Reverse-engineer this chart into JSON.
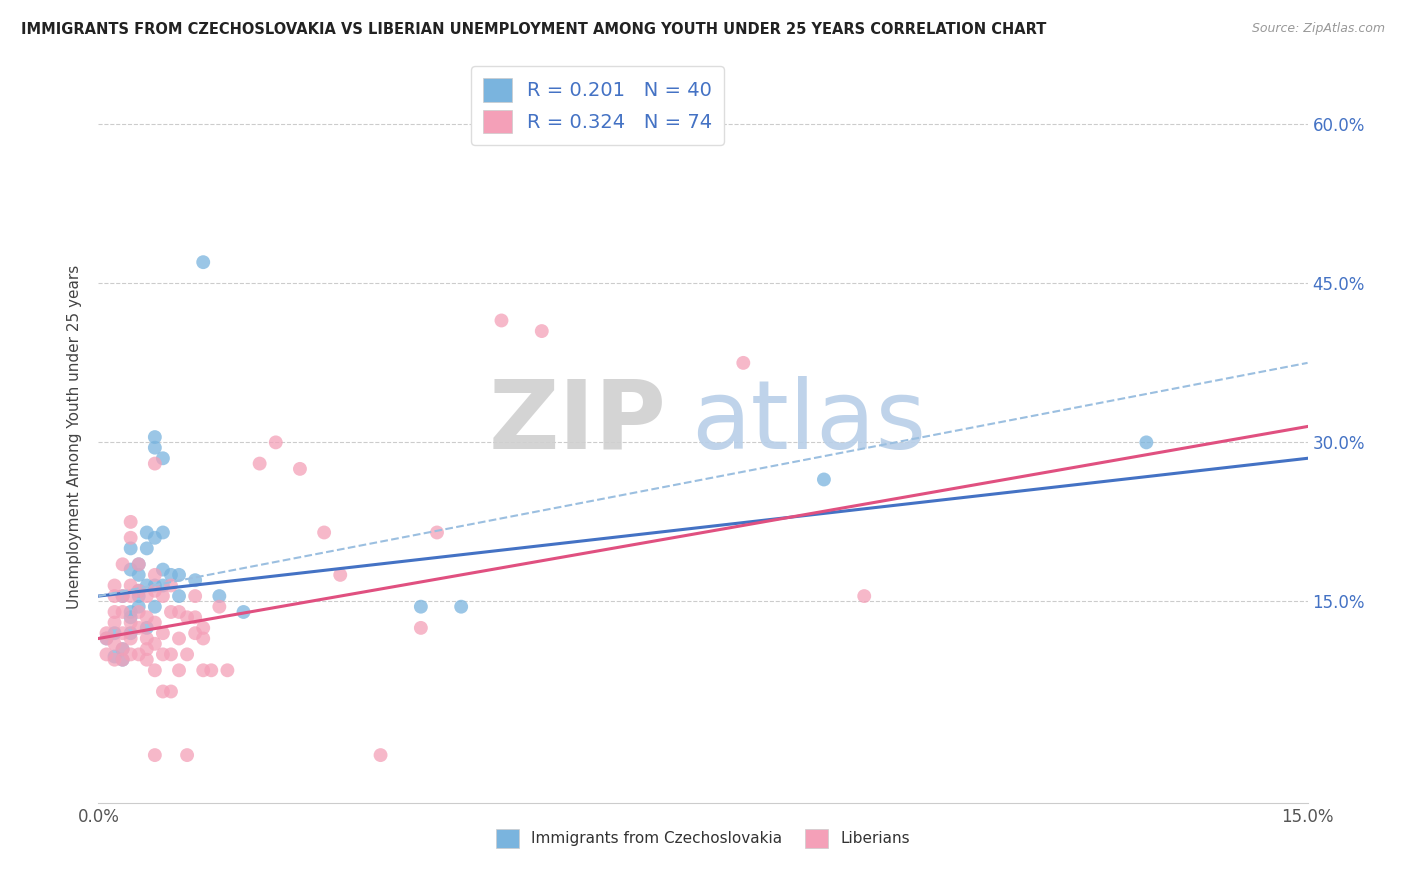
{
  "title": "IMMIGRANTS FROM CZECHOSLOVAKIA VS LIBERIAN UNEMPLOYMENT AMONG YOUTH UNDER 25 YEARS CORRELATION CHART",
  "source": "Source: ZipAtlas.com",
  "ylabel": "Unemployment Among Youth under 25 years",
  "yticks": [
    "60.0%",
    "45.0%",
    "30.0%",
    "15.0%"
  ],
  "ytick_vals": [
    0.6,
    0.45,
    0.3,
    0.15
  ],
  "xlim": [
    0.0,
    0.15
  ],
  "ylim": [
    -0.04,
    0.65
  ],
  "legend_blue_R": "0.201",
  "legend_blue_N": "40",
  "legend_pink_R": "0.324",
  "legend_pink_N": "74",
  "legend_label_blue": "Immigrants from Czechoslovakia",
  "legend_label_pink": "Liberians",
  "watermark_zip": "ZIP",
  "watermark_atlas": "atlas",
  "blue_color": "#7ab4de",
  "pink_color": "#f4a0b8",
  "blue_scatter": [
    [
      0.001,
      0.115
    ],
    [
      0.002,
      0.098
    ],
    [
      0.002,
      0.12
    ],
    [
      0.003,
      0.105
    ],
    [
      0.003,
      0.095
    ],
    [
      0.003,
      0.155
    ],
    [
      0.004,
      0.12
    ],
    [
      0.004,
      0.135
    ],
    [
      0.004,
      0.14
    ],
    [
      0.004,
      0.18
    ],
    [
      0.004,
      0.2
    ],
    [
      0.005,
      0.145
    ],
    [
      0.005,
      0.155
    ],
    [
      0.005,
      0.16
    ],
    [
      0.005,
      0.175
    ],
    [
      0.005,
      0.185
    ],
    [
      0.006,
      0.125
    ],
    [
      0.006,
      0.165
    ],
    [
      0.006,
      0.2
    ],
    [
      0.006,
      0.215
    ],
    [
      0.007,
      0.145
    ],
    [
      0.007,
      0.165
    ],
    [
      0.007,
      0.21
    ],
    [
      0.007,
      0.295
    ],
    [
      0.007,
      0.305
    ],
    [
      0.008,
      0.165
    ],
    [
      0.008,
      0.18
    ],
    [
      0.008,
      0.215
    ],
    [
      0.008,
      0.285
    ],
    [
      0.009,
      0.175
    ],
    [
      0.01,
      0.175
    ],
    [
      0.01,
      0.155
    ],
    [
      0.012,
      0.17
    ],
    [
      0.013,
      0.47
    ],
    [
      0.015,
      0.155
    ],
    [
      0.018,
      0.14
    ],
    [
      0.04,
      0.145
    ],
    [
      0.045,
      0.145
    ],
    [
      0.09,
      0.265
    ],
    [
      0.13,
      0.3
    ]
  ],
  "pink_scatter": [
    [
      0.001,
      0.1
    ],
    [
      0.001,
      0.115
    ],
    [
      0.001,
      0.12
    ],
    [
      0.002,
      0.095
    ],
    [
      0.002,
      0.11
    ],
    [
      0.002,
      0.13
    ],
    [
      0.002,
      0.14
    ],
    [
      0.002,
      0.155
    ],
    [
      0.002,
      0.165
    ],
    [
      0.003,
      0.095
    ],
    [
      0.003,
      0.105
    ],
    [
      0.003,
      0.12
    ],
    [
      0.003,
      0.14
    ],
    [
      0.003,
      0.155
    ],
    [
      0.003,
      0.185
    ],
    [
      0.004,
      0.1
    ],
    [
      0.004,
      0.115
    ],
    [
      0.004,
      0.13
    ],
    [
      0.004,
      0.155
    ],
    [
      0.004,
      0.165
    ],
    [
      0.004,
      0.21
    ],
    [
      0.004,
      0.225
    ],
    [
      0.005,
      0.1
    ],
    [
      0.005,
      0.125
    ],
    [
      0.005,
      0.14
    ],
    [
      0.005,
      0.16
    ],
    [
      0.005,
      0.185
    ],
    [
      0.006,
      0.095
    ],
    [
      0.006,
      0.105
    ],
    [
      0.006,
      0.115
    ],
    [
      0.006,
      0.135
    ],
    [
      0.006,
      0.155
    ],
    [
      0.007,
      0.005
    ],
    [
      0.007,
      0.085
    ],
    [
      0.007,
      0.11
    ],
    [
      0.007,
      0.13
    ],
    [
      0.007,
      0.16
    ],
    [
      0.007,
      0.175
    ],
    [
      0.007,
      0.28
    ],
    [
      0.008,
      0.065
    ],
    [
      0.008,
      0.1
    ],
    [
      0.008,
      0.12
    ],
    [
      0.008,
      0.155
    ],
    [
      0.009,
      0.065
    ],
    [
      0.009,
      0.1
    ],
    [
      0.009,
      0.14
    ],
    [
      0.009,
      0.165
    ],
    [
      0.01,
      0.085
    ],
    [
      0.01,
      0.115
    ],
    [
      0.01,
      0.14
    ],
    [
      0.011,
      0.005
    ],
    [
      0.011,
      0.1
    ],
    [
      0.011,
      0.135
    ],
    [
      0.012,
      0.12
    ],
    [
      0.012,
      0.135
    ],
    [
      0.012,
      0.155
    ],
    [
      0.013,
      0.085
    ],
    [
      0.013,
      0.115
    ],
    [
      0.013,
      0.125
    ],
    [
      0.014,
      0.085
    ],
    [
      0.015,
      0.145
    ],
    [
      0.016,
      0.085
    ],
    [
      0.02,
      0.28
    ],
    [
      0.022,
      0.3
    ],
    [
      0.025,
      0.275
    ],
    [
      0.028,
      0.215
    ],
    [
      0.03,
      0.175
    ],
    [
      0.035,
      0.005
    ],
    [
      0.04,
      0.125
    ],
    [
      0.042,
      0.215
    ],
    [
      0.05,
      0.415
    ],
    [
      0.055,
      0.405
    ],
    [
      0.08,
      0.375
    ],
    [
      0.095,
      0.155
    ]
  ],
  "blue_trendline": [
    [
      0.0,
      0.155
    ],
    [
      0.15,
      0.285
    ]
  ],
  "pink_trendline": [
    [
      0.0,
      0.115
    ],
    [
      0.15,
      0.315
    ]
  ],
  "blue_dashed_trendline": [
    [
      0.0,
      0.155
    ],
    [
      0.15,
      0.375
    ]
  ]
}
